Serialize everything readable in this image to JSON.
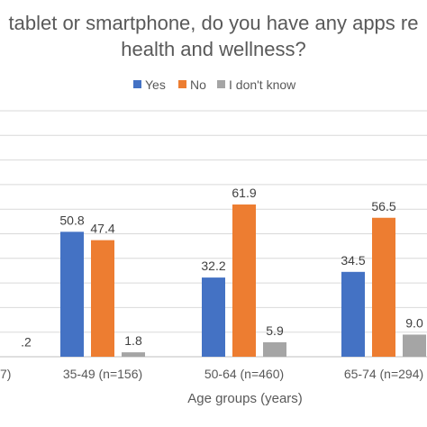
{
  "chart_data": {
    "type": "bar",
    "title_lines": [
      "tablet or smartphone, do you have any apps re",
      "health and wellness?"
    ],
    "xlabel": "Age groups (years)",
    "ylabel": "",
    "ylim": [
      0,
      100
    ],
    "gridlines": true,
    "legend_position": "top",
    "categories": [
      "7)",
      "35-49 (n=156)",
      "50-64 (n=460)",
      "65-74 (n=294)"
    ],
    "series": [
      {
        "name": "Yes",
        "color": "#4472c4",
        "values": [
          null,
          50.8,
          32.2,
          34.5
        ],
        "labels": [
          "",
          "50.8",
          "32.2",
          "34.5"
        ]
      },
      {
        "name": "No",
        "color": "#ed7d31",
        "values": [
          null,
          47.4,
          61.9,
          56.5
        ],
        "labels": [
          "",
          "47.4",
          "61.9",
          "56.5"
        ]
      },
      {
        "name": "I don't know",
        "color": "#a5a5a5",
        "values": [
          null,
          1.8,
          5.9,
          9.0
        ],
        "labels": [
          ".2",
          "1.8",
          "5.9",
          "9.0"
        ]
      }
    ]
  }
}
